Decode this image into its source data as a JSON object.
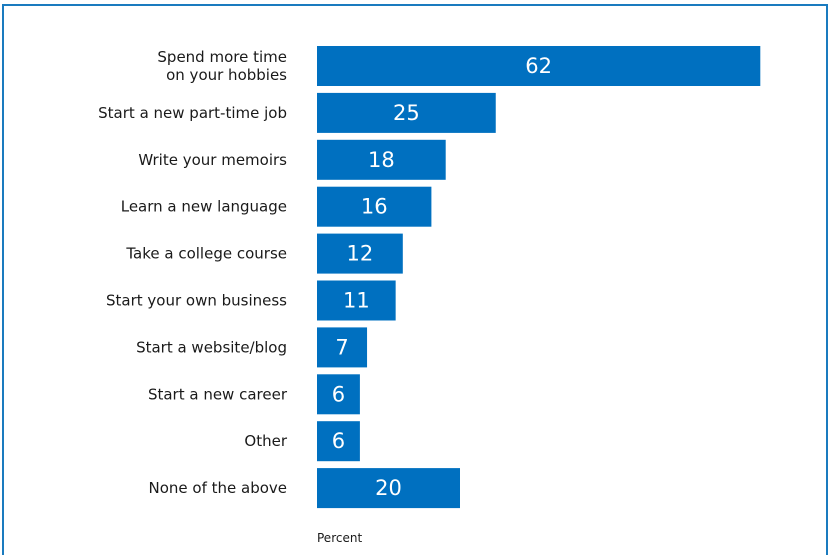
{
  "chart_data": {
    "type": "bar",
    "orientation": "horizontal",
    "categories": [
      [
        "Spend more time",
        "on your hobbies"
      ],
      [
        "Start a new part-time job"
      ],
      [
        "Write your memoirs"
      ],
      [
        "Learn a new language"
      ],
      [
        "Take a college course"
      ],
      [
        "Start your own business"
      ],
      [
        "Start a website/blog"
      ],
      [
        "Start a new career"
      ],
      [
        "Other"
      ],
      [
        "None of the above"
      ]
    ],
    "values": [
      62,
      25,
      18,
      16,
      12,
      11,
      7,
      6,
      6,
      20
    ],
    "xlabel": "Percent",
    "grid": false,
    "colors": {
      "bar": "#0070c0",
      "frame": "#1a7bbf"
    }
  }
}
